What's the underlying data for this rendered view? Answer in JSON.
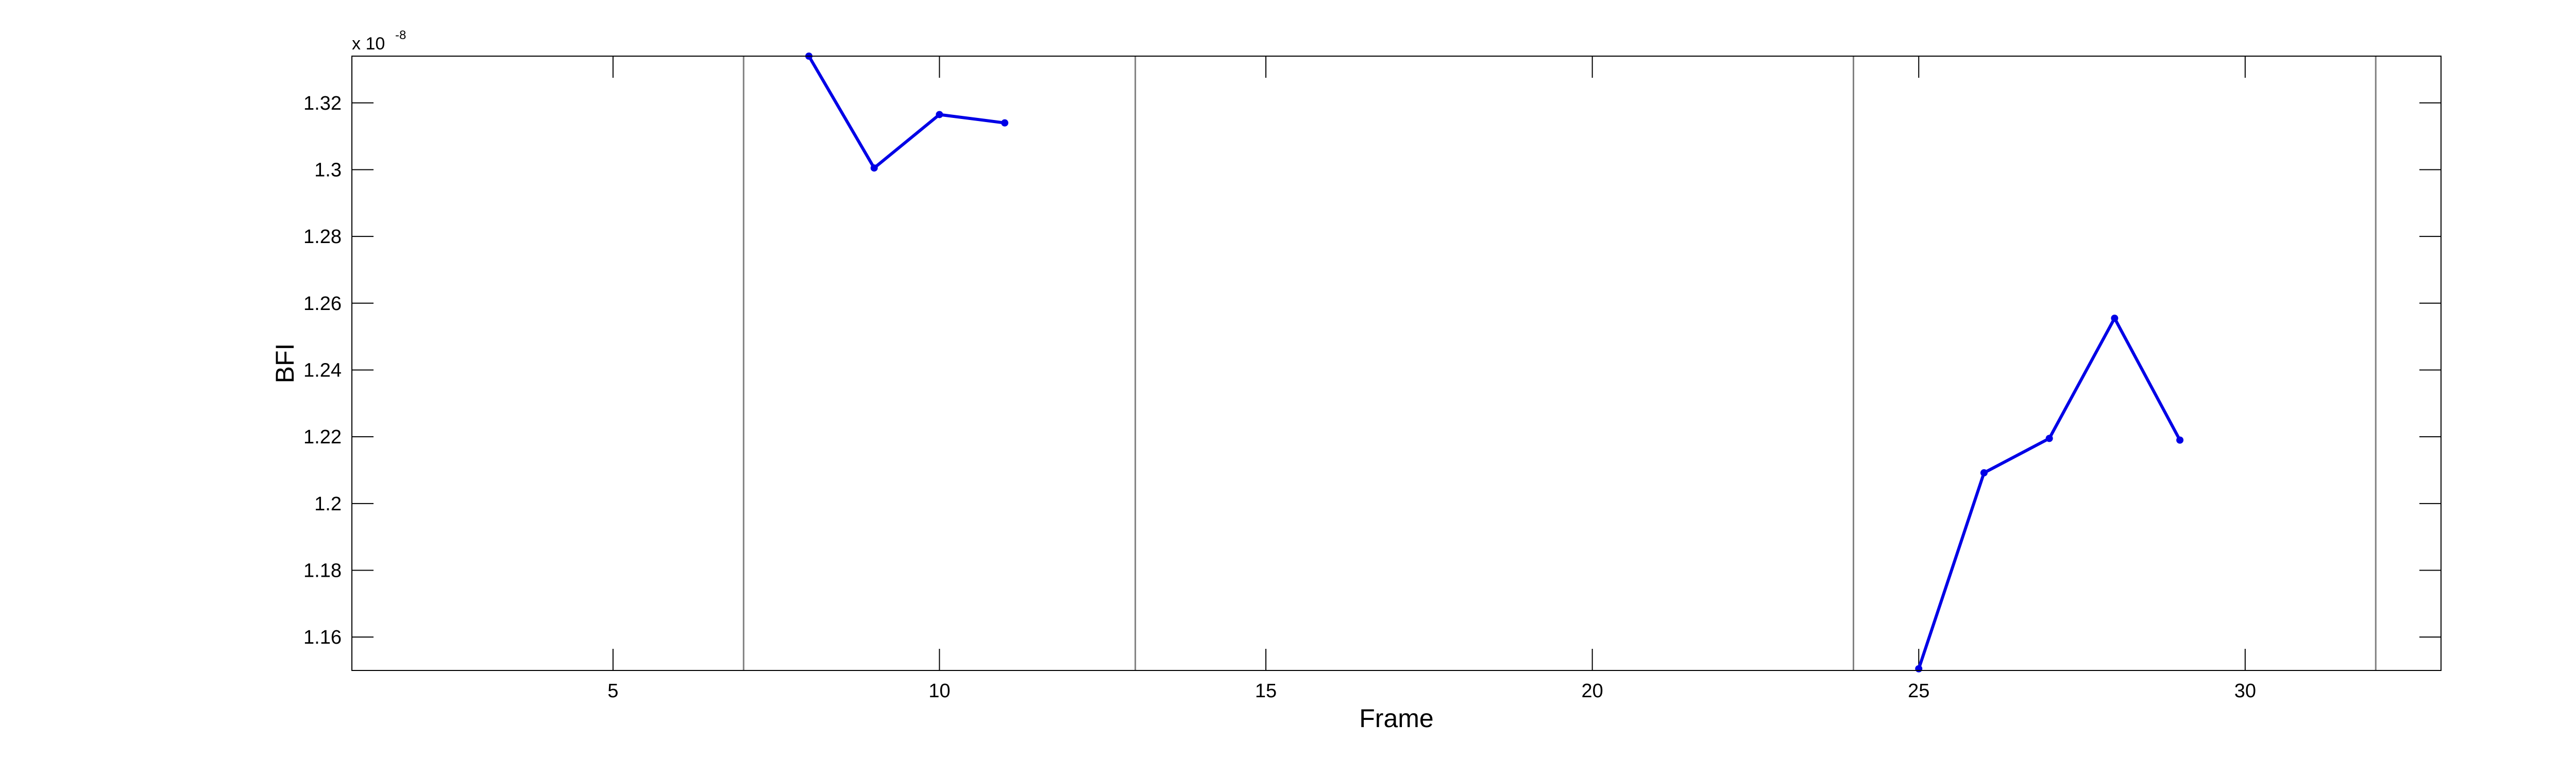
{
  "chart_data": {
    "type": "line",
    "title": "",
    "xlabel": "Frame",
    "ylabel": "BFI",
    "y_multiplier_base": "x 10",
    "y_multiplier_exponent": "-8",
    "xlim": [
      1,
      33
    ],
    "ylim": [
      1.15,
      1.334
    ],
    "xticks": [
      5,
      10,
      15,
      20,
      25,
      30
    ],
    "xtick_labels": [
      "5",
      "10",
      "15",
      "20",
      "25",
      "30"
    ],
    "yticks": [
      1.16,
      1.18,
      1.2,
      1.22,
      1.24,
      1.26,
      1.28,
      1.3,
      1.32
    ],
    "ytick_labels": [
      "1.16",
      "1.18",
      "1.2",
      "1.22",
      "1.24",
      "1.26",
      "1.28",
      "1.3",
      "1.32"
    ],
    "vertical_lines_x": [
      7,
      13,
      24,
      32
    ],
    "grid": false,
    "series": [
      {
        "color": "#0000e6",
        "segments": [
          {
            "x": [
              8,
              9,
              10,
              11
            ],
            "y": [
              1.334,
              1.3005,
              1.3165,
              1.314
            ]
          },
          {
            "x": [
              25,
              26,
              27,
              28,
              29
            ],
            "y": [
              1.1505,
              1.2092,
              1.2195,
              1.2555,
              1.219
            ]
          }
        ]
      }
    ],
    "colors": {
      "axes": "#000000",
      "vline": "#808080",
      "line": "#0000e6"
    }
  }
}
